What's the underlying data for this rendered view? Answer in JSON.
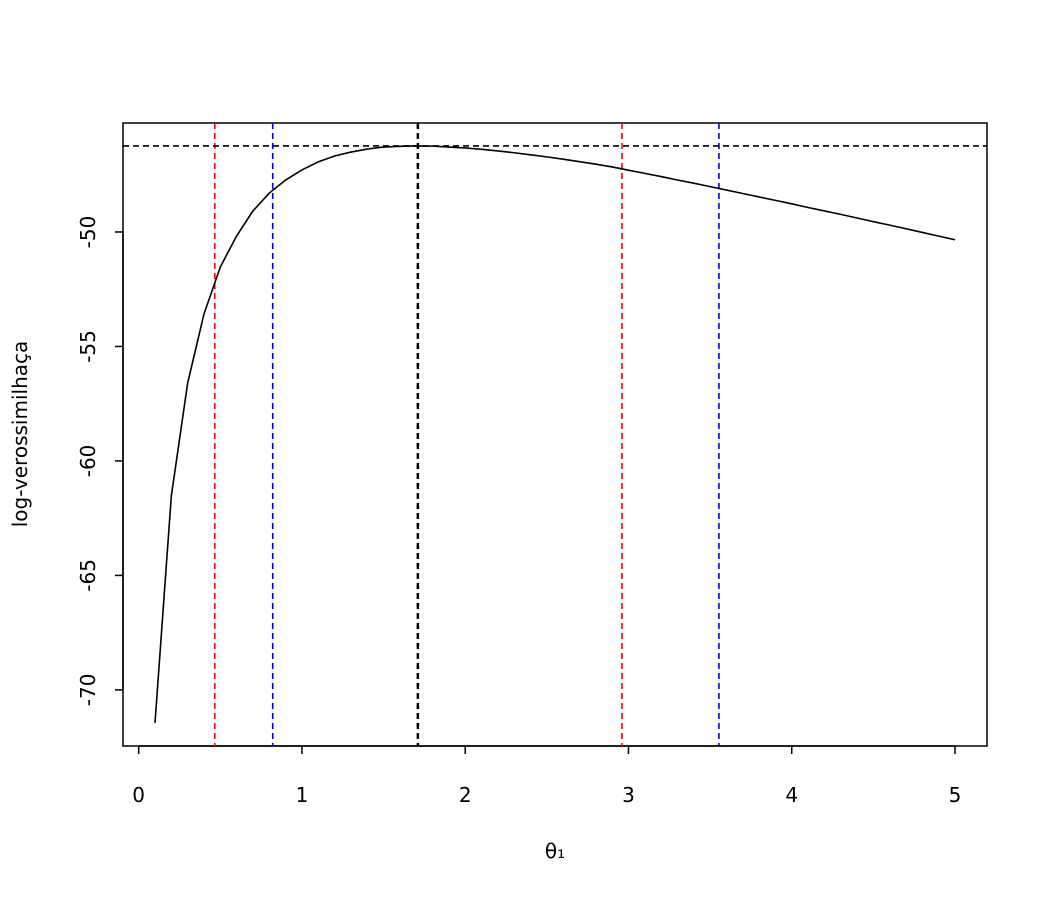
{
  "chart_data": {
    "type": "line",
    "xlabel": "θ₁",
    "ylabel": "log-verossimilhaça",
    "x": [
      0.1,
      0.2,
      0.3,
      0.4,
      0.5,
      0.6,
      0.7,
      0.8,
      0.9,
      1.0,
      1.1,
      1.2,
      1.3,
      1.4,
      1.5,
      1.6,
      1.7,
      1.8,
      1.9,
      2.0,
      2.1,
      2.2,
      2.3,
      2.4,
      2.5,
      2.6,
      2.7,
      2.8,
      2.9,
      3.0,
      3.1,
      3.2,
      3.3,
      3.4,
      3.5,
      3.6,
      3.7,
      3.8,
      3.9,
      4.0,
      4.1,
      4.2,
      4.3,
      4.4,
      4.5,
      4.6,
      4.7,
      4.8,
      4.9,
      5.0
    ],
    "series": [
      {
        "color": "#000000",
        "values": [
          -71.44,
          -61.53,
          -56.6,
          -53.58,
          -51.53,
          -50.17,
          -49.08,
          -48.3,
          -47.73,
          -47.29,
          -46.94,
          -46.68,
          -46.51,
          -46.38,
          -46.29,
          -46.26,
          -46.24,
          -46.25,
          -46.29,
          -46.33,
          -46.39,
          -46.46,
          -46.54,
          -46.63,
          -46.72,
          -46.82,
          -46.93,
          -47.04,
          -47.16,
          -47.3,
          -47.44,
          -47.58,
          -47.73,
          -47.87,
          -48.02,
          -48.17,
          -48.32,
          -48.47,
          -48.62,
          -48.77,
          -48.93,
          -49.08,
          -49.23,
          -49.39,
          -49.55,
          -49.7,
          -49.86,
          -50.02,
          -50.18,
          -50.34
        ]
      }
    ],
    "vlines": [
      {
        "x": 0.466,
        "color": "#ff0000"
      },
      {
        "x": 0.821,
        "color": "#0000cd"
      },
      {
        "x": 1.71,
        "color": "#000000"
      },
      {
        "x": 2.96,
        "color": "#ff0000"
      },
      {
        "x": 3.554,
        "color": "#0000cd"
      }
    ],
    "hline": {
      "y": -46.24,
      "color": "#000000"
    },
    "xlim": [
      -0.096,
      5.196
    ],
    "xticks": [
      0,
      1,
      2,
      3,
      4,
      5
    ],
    "ylim": [
      -72.45,
      -45.24
    ],
    "yticks": [
      -70,
      -65,
      -60,
      -55,
      -50
    ]
  }
}
